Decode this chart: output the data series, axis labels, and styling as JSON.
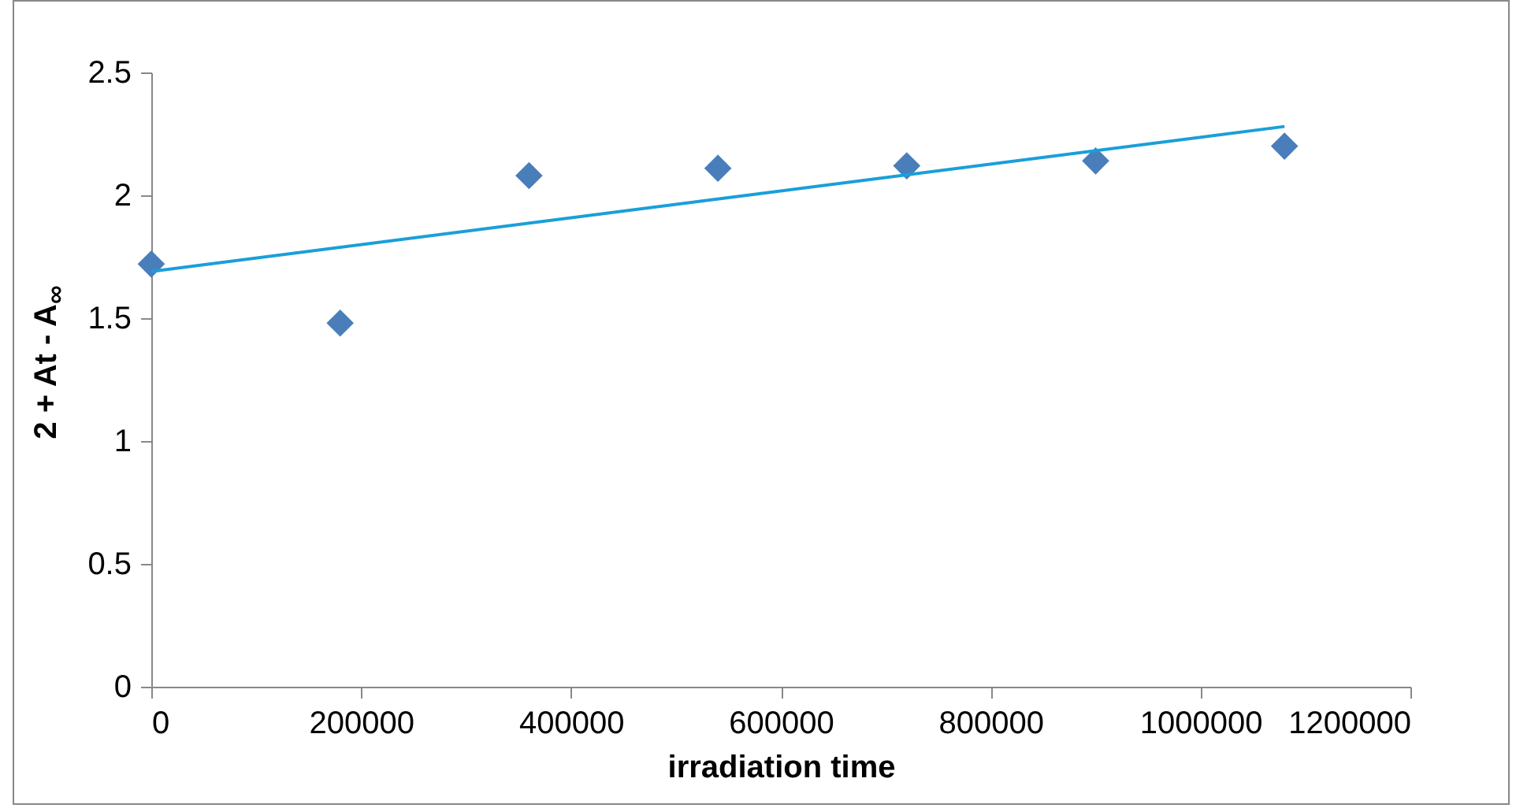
{
  "chart_data": {
    "type": "scatter",
    "xlabel": "irradiation time",
    "ylabel": "2 + At - A$_{∞}$",
    "xlim": [
      0,
      1200000
    ],
    "xticks": [
      0,
      200000,
      400000,
      600000,
      800000,
      1000000,
      1200000
    ],
    "ylim": [
      0,
      2.5
    ],
    "yticks": [
      0,
      0.5,
      1,
      1.5,
      2,
      2.5
    ],
    "grid": false,
    "series": [
      {
        "marker": "diamond",
        "color": "#4a7ebb",
        "x": [
          0,
          180000,
          360000,
          540000,
          720000,
          900000,
          1080000
        ],
        "values": [
          1.72,
          1.48,
          2.08,
          2.11,
          2.12,
          2.14,
          2.2
        ]
      },
      {
        "type": "line",
        "marker": "none",
        "color": "#1a9fd9",
        "x": [
          0,
          1080000
        ],
        "values": [
          1.69,
          2.28
        ]
      }
    ]
  }
}
